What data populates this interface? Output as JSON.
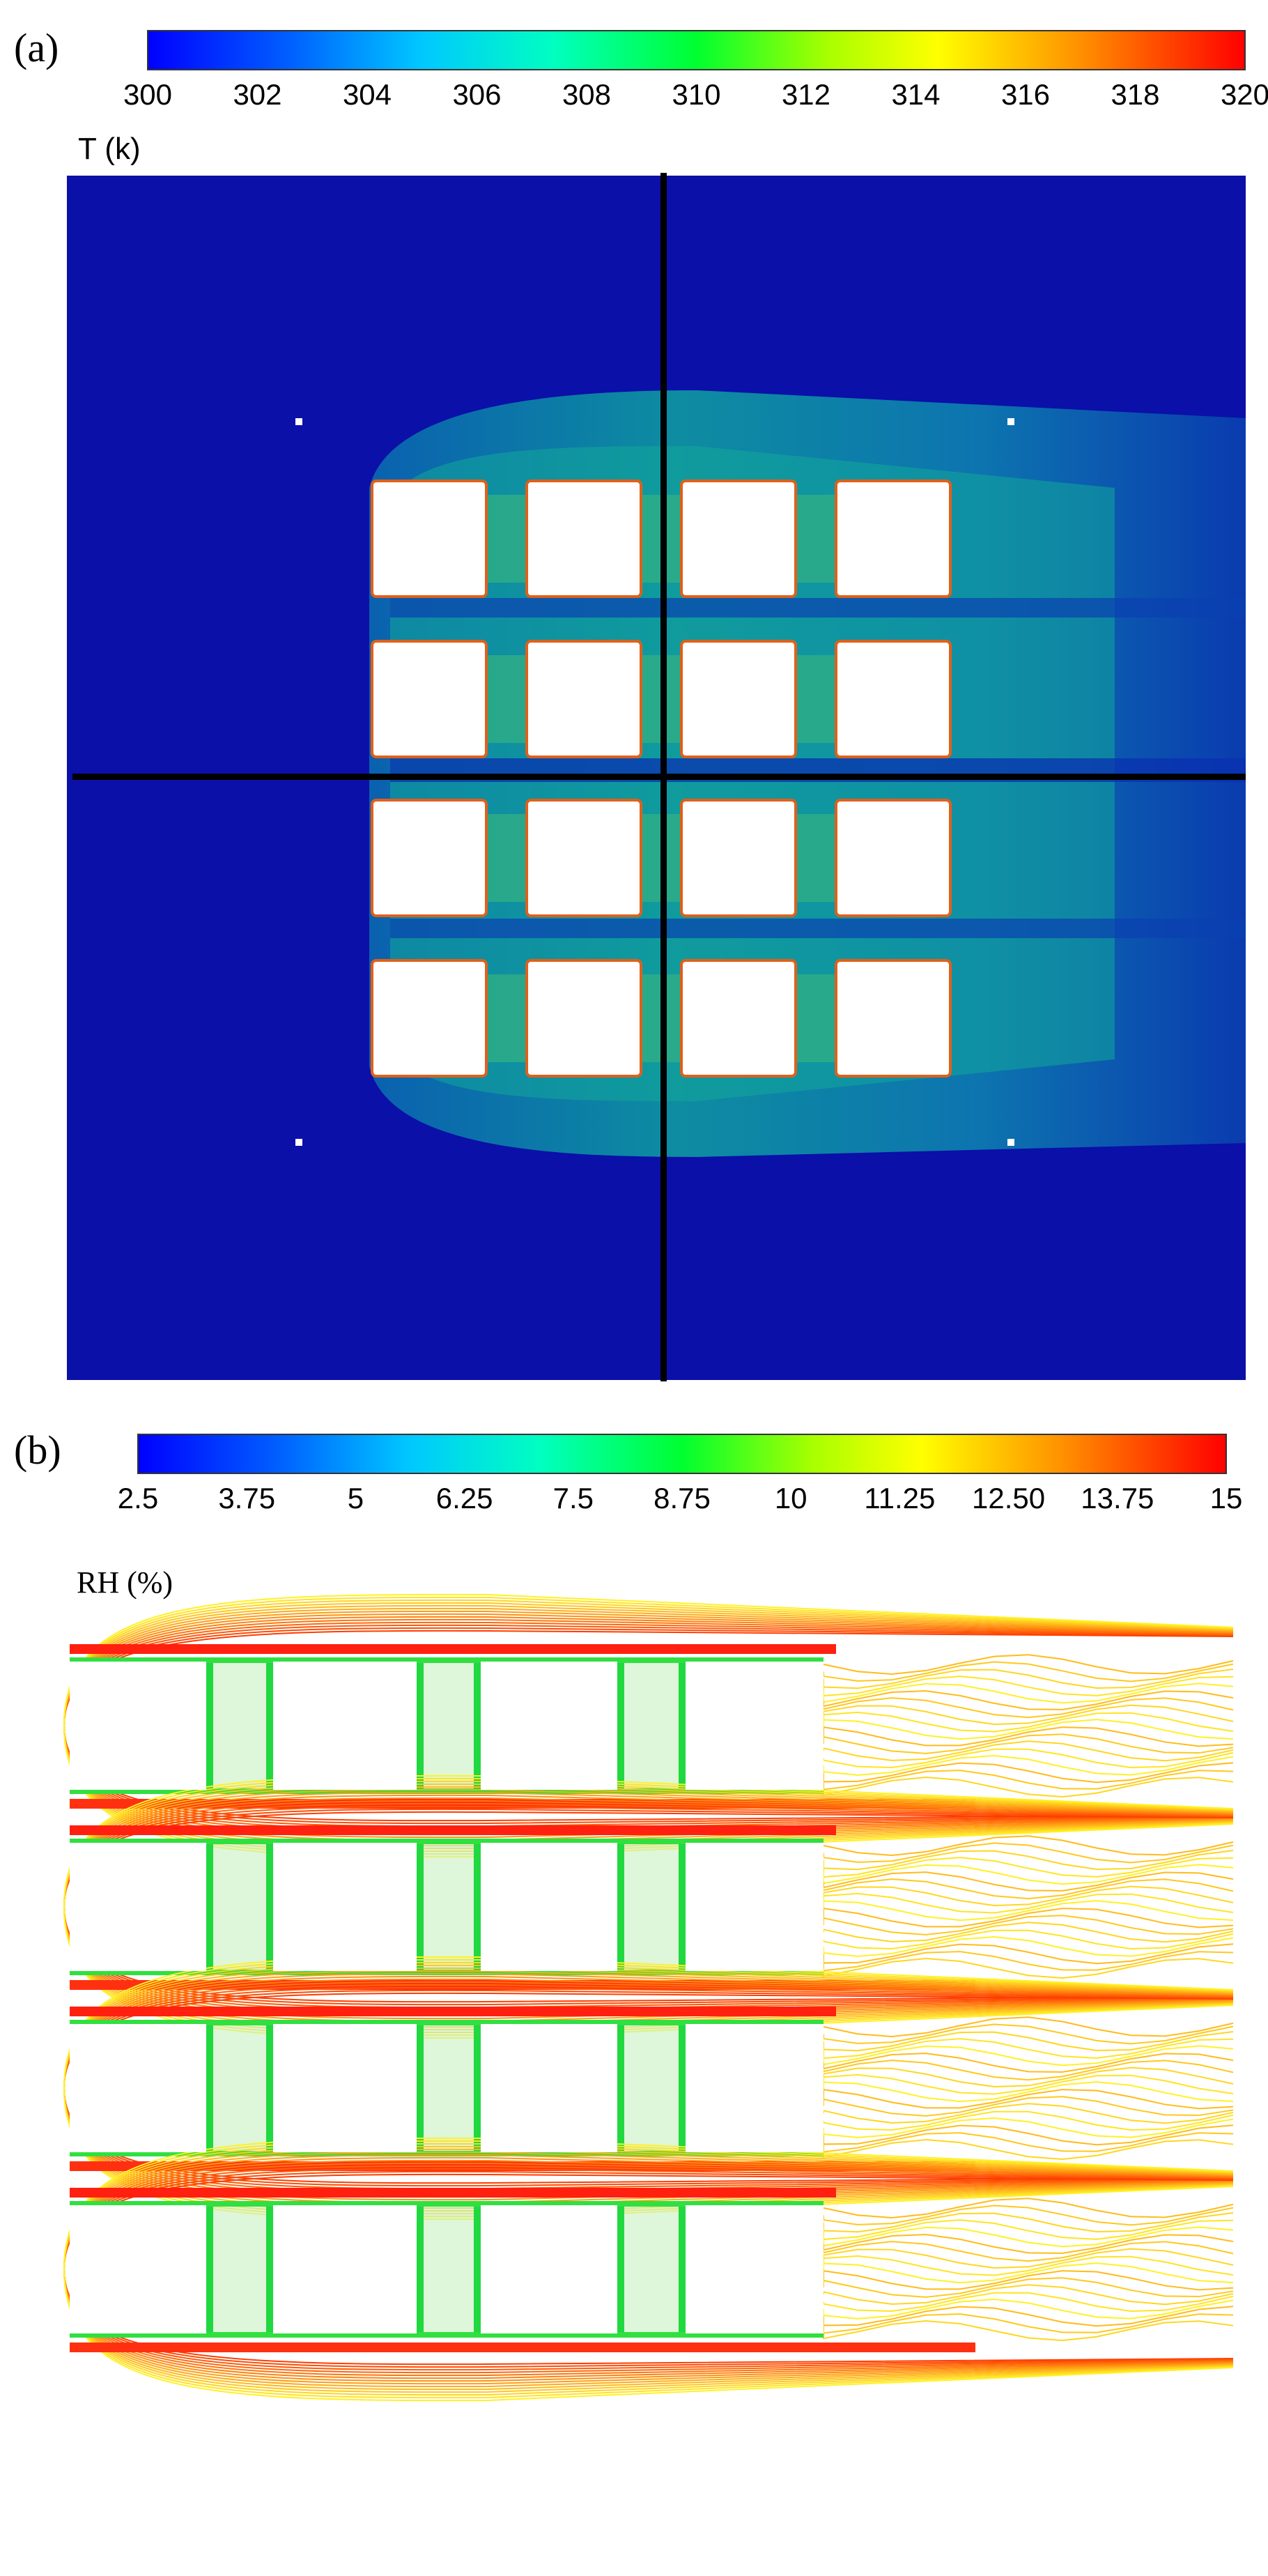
{
  "panel_a": {
    "label": "(a)",
    "quantity_label": "T (k)",
    "colorbar": {
      "min": 300,
      "max": 320,
      "ticks": [
        "300",
        "302",
        "304",
        "306",
        "308",
        "310",
        "312",
        "314",
        "316",
        "318",
        "320"
      ]
    },
    "background_color": "#0a10a8",
    "crosshair_color": "#000000"
  },
  "panel_b": {
    "label": "(b)",
    "quantity_label": "RH (%)",
    "colorbar": {
      "min": 2.5,
      "max": 15,
      "ticks": [
        "2.5",
        "3.75",
        "5",
        "6.25",
        "7.5",
        "8.75",
        "10",
        "11.25",
        "12.50",
        "13.75",
        "15"
      ]
    }
  },
  "layout_grid": {
    "rows": 4,
    "columns": 4
  },
  "colormap": [
    "#0000ff",
    "#00b4ff",
    "#00ffd0",
    "#00ff40",
    "#b8ff00",
    "#ffff00",
    "#ffb000",
    "#ff6000",
    "#ff0000"
  ]
}
